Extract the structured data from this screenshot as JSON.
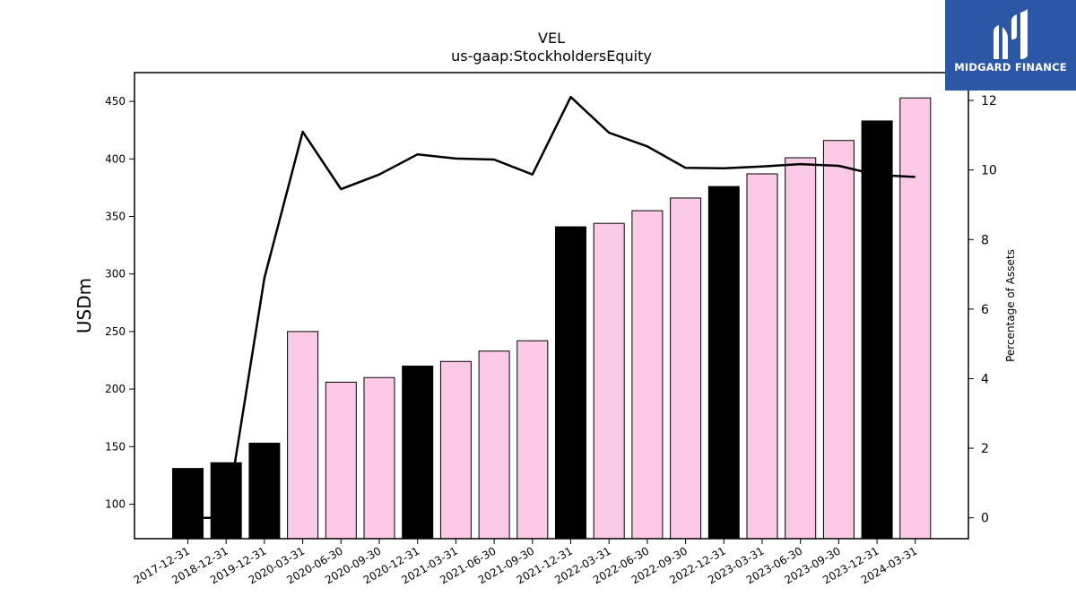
{
  "logo": {
    "text": "MIDGARD FINANCE",
    "bg_color": "#2c57a6"
  },
  "chart_data": {
    "type": "bar+line",
    "title": "VEL",
    "subtitle": "us-gaap:StockholdersEquity",
    "ylabel": "USDm",
    "y2label": "Percentage of Assets",
    "ylim": [
      70,
      475
    ],
    "y2lim": [
      -0.6,
      12.8
    ],
    "yticks": [
      100,
      150,
      200,
      250,
      300,
      350,
      400,
      450
    ],
    "y2ticks": [
      0,
      2,
      4,
      6,
      8,
      10,
      12
    ],
    "categories": [
      "2017-12-31",
      "2018-12-31",
      "2019-12-31",
      "2020-03-31",
      "2020-06-30",
      "2020-09-30",
      "2020-12-31",
      "2021-03-31",
      "2021-06-30",
      "2021-09-30",
      "2021-12-31",
      "2022-03-31",
      "2022-06-30",
      "2022-09-30",
      "2022-12-31",
      "2023-03-31",
      "2023-06-30",
      "2023-09-30",
      "2023-12-31",
      "2024-03-31"
    ],
    "values": [
      131,
      136,
      153,
      250,
      206,
      210,
      220,
      224,
      233,
      242,
      341,
      344,
      355,
      366,
      376,
      387,
      401,
      416,
      433,
      453
    ],
    "bar_colors": [
      "#000000",
      "#000000",
      "#000000",
      "#fccae6",
      "#fccae6",
      "#fccae6",
      "#000000",
      "#fccae6",
      "#fccae6",
      "#fccae6",
      "#000000",
      "#fccae6",
      "#fccae6",
      "#fccae6",
      "#000000",
      "#fccae6",
      "#fccae6",
      "#fccae6",
      "#000000",
      "#fccae6"
    ],
    "pct_of_assets": [
      0.0,
      0.0,
      6.9,
      11.1,
      9.45,
      9.87,
      10.45,
      10.33,
      10.3,
      9.87,
      12.1,
      11.07,
      10.68,
      10.06,
      10.05,
      10.1,
      10.17,
      10.12,
      9.86,
      9.8
    ],
    "line_color": "#000000",
    "grid": false
  }
}
